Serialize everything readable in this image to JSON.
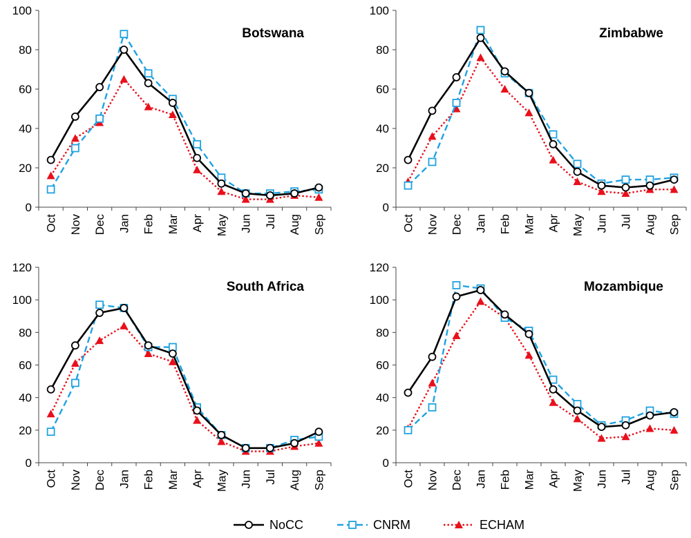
{
  "legend": [
    {
      "name": "NoCC",
      "color": "#000000",
      "dash": "solid",
      "marker": "circle"
    },
    {
      "name": "CNRM",
      "color": "#1fa2e0",
      "dash": "dash",
      "marker": "square"
    },
    {
      "name": "ECHAM",
      "color": "#e8101b",
      "dash": "dot",
      "marker": "triangle"
    }
  ],
  "chart_data": [
    {
      "type": "line",
      "title": "Botswana",
      "categories": [
        "Oct",
        "Nov",
        "Dec",
        "Jan",
        "Feb",
        "Mar",
        "Apr",
        "May",
        "Jun",
        "Jul",
        "Aug",
        "Sep"
      ],
      "ylim": [
        0,
        100
      ],
      "yticks": [
        "0",
        "20",
        "40",
        "60",
        "80",
        "100"
      ],
      "series": [
        {
          "name": "NoCC",
          "values": [
            24,
            46,
            61,
            80,
            63,
            53,
            25,
            12,
            7,
            6,
            7,
            10
          ]
        },
        {
          "name": "CNRM",
          "values": [
            9,
            30,
            45,
            88,
            68,
            55,
            32,
            15,
            7,
            7,
            8,
            9
          ]
        },
        {
          "name": "ECHAM",
          "values": [
            16,
            35,
            43,
            65,
            51,
            47,
            19,
            8,
            4,
            4,
            6,
            5
          ]
        }
      ]
    },
    {
      "type": "line",
      "title": "Zimbabwe",
      "categories": [
        "Oct",
        "Nov",
        "Dec",
        "Jan",
        "Feb",
        "Mar",
        "Apr",
        "May",
        "Jun",
        "Jul",
        "Aug",
        "Sep"
      ],
      "ylim": [
        0,
        100
      ],
      "yticks": [
        "0",
        "20",
        "40",
        "60",
        "80",
        "100"
      ],
      "series": [
        {
          "name": "NoCC",
          "values": [
            24,
            49,
            66,
            86,
            69,
            58,
            32,
            18,
            11,
            10,
            11,
            14
          ]
        },
        {
          "name": "CNRM",
          "values": [
            11,
            23,
            53,
            90,
            68,
            58,
            37,
            22,
            12,
            14,
            14,
            15
          ]
        },
        {
          "name": "ECHAM",
          "values": [
            13,
            36,
            50,
            76,
            60,
            48,
            24,
            13,
            8,
            7,
            9,
            9
          ]
        }
      ]
    },
    {
      "type": "line",
      "title": "South Africa",
      "categories": [
        "Oct",
        "Nov",
        "Dec",
        "Jan",
        "Feb",
        "Mar",
        "Apr",
        "May",
        "Jun",
        "Jul",
        "Aug",
        "Sep"
      ],
      "ylim": [
        0,
        120
      ],
      "yticks": [
        "0",
        "20",
        "40",
        "60",
        "80",
        "100",
        "120"
      ],
      "series": [
        {
          "name": "NoCC",
          "values": [
            45,
            72,
            92,
            95,
            72,
            67,
            32,
            17,
            9,
            9,
            12,
            19
          ]
        },
        {
          "name": "CNRM",
          "values": [
            19,
            49,
            97,
            95,
            71,
            71,
            34,
            17,
            9,
            9,
            14,
            16
          ]
        },
        {
          "name": "ECHAM",
          "values": [
            30,
            61,
            75,
            84,
            67,
            62,
            26,
            13,
            7,
            7,
            10,
            12
          ]
        }
      ]
    },
    {
      "type": "line",
      "title": "Mozambique",
      "categories": [
        "Oct",
        "Nov",
        "Dec",
        "Jan",
        "Feb",
        "Mar",
        "Apr",
        "May",
        "Jun",
        "Jul",
        "Aug",
        "Sep"
      ],
      "ylim": [
        0,
        120
      ],
      "yticks": [
        "0",
        "20",
        "40",
        "60",
        "80",
        "100",
        "120"
      ],
      "series": [
        {
          "name": "NoCC",
          "values": [
            43,
            65,
            102,
            106,
            91,
            79,
            45,
            32,
            22,
            23,
            29,
            31
          ]
        },
        {
          "name": "CNRM",
          "values": [
            20,
            34,
            109,
            107,
            89,
            81,
            51,
            36,
            23,
            26,
            32,
            30
          ]
        },
        {
          "name": "ECHAM",
          "values": [
            21,
            49,
            78,
            99,
            89,
            66,
            37,
            27,
            15,
            16,
            21,
            20
          ]
        }
      ]
    }
  ]
}
